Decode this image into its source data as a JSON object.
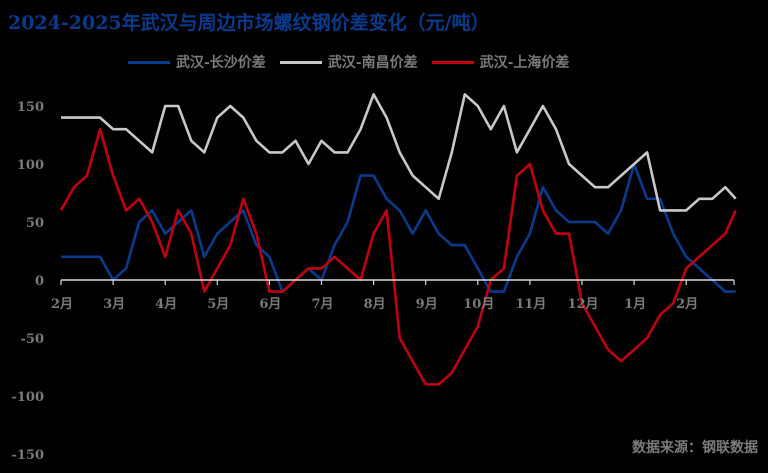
{
  "title": "2024-2025年武汉与周边市场螺纹钢价差变化（元/吨）",
  "source": "数据来源：钢联数据",
  "chart_data": {
    "type": "line",
    "title": "2024-2025年武汉与周边市场螺纹钢价差变化（元/吨）",
    "xlabel": "",
    "ylabel": "元/吨",
    "ylim": [
      -150,
      150
    ],
    "yticks": [
      150,
      100,
      50,
      0,
      -50,
      -100,
      -150
    ],
    "xticks": [
      "2月",
      "3月",
      "4月",
      "5月",
      "6月",
      "7月",
      "8月",
      "9月",
      "10月",
      "11月",
      "12月",
      "1月",
      "2月"
    ],
    "grid": false,
    "legend_position": "top",
    "x": [
      0,
      0.25,
      0.5,
      0.75,
      1,
      1.25,
      1.5,
      1.75,
      2,
      2.25,
      2.5,
      2.75,
      3,
      3.25,
      3.5,
      3.75,
      4,
      4.25,
      4.5,
      4.75,
      5,
      5.25,
      5.5,
      5.75,
      6,
      6.25,
      6.5,
      6.75,
      7,
      7.25,
      7.5,
      7.75,
      8,
      8.25,
      8.5,
      8.75,
      9,
      9.25,
      9.5,
      9.75,
      10,
      10.25,
      10.5,
      10.75,
      11,
      11.25,
      11.5,
      11.75,
      12,
      12.25,
      12.5,
      12.75,
      12.95
    ],
    "series": [
      {
        "name": "武汉-长沙价差",
        "color": "#0a3a8c",
        "values": [
          20,
          20,
          20,
          20,
          0,
          10,
          50,
          60,
          40,
          50,
          60,
          20,
          40,
          50,
          60,
          30,
          20,
          -10,
          0,
          10,
          0,
          30,
          50,
          90,
          90,
          70,
          60,
          40,
          60,
          40,
          30,
          30,
          10,
          -10,
          -10,
          20,
          40,
          80,
          60,
          50,
          50,
          50,
          40,
          60,
          100,
          70,
          70,
          40,
          20,
          10,
          0,
          -10,
          -10
        ]
      },
      {
        "name": "武汉-南昌价差",
        "color": "#c8c8c8",
        "values": [
          140,
          140,
          140,
          140,
          130,
          130,
          120,
          110,
          150,
          150,
          120,
          110,
          140,
          150,
          140,
          120,
          110,
          110,
          120,
          100,
          120,
          110,
          110,
          130,
          160,
          140,
          110,
          90,
          80,
          70,
          110,
          160,
          150,
          130,
          150,
          110,
          130,
          150,
          130,
          100,
          90,
          80,
          80,
          90,
          100,
          110,
          60,
          60,
          60,
          70,
          70,
          80,
          70
        ]
      },
      {
        "name": "武汉-上海价差",
        "color": "#c00010",
        "values": [
          60,
          80,
          90,
          130,
          90,
          60,
          70,
          50,
          20,
          60,
          40,
          -10,
          10,
          30,
          70,
          40,
          -10,
          -10,
          0,
          10,
          10,
          20,
          10,
          0,
          40,
          60,
          -50,
          -70,
          -90,
          -90,
          -80,
          -60,
          -40,
          0,
          10,
          90,
          100,
          60,
          40,
          40,
          -20,
          -40,
          -60,
          -70,
          -60,
          -50,
          -30,
          -20,
          10,
          20,
          30,
          40,
          60
        ]
      }
    ]
  },
  "legend": [
    {
      "label": "武汉-长沙价差",
      "color": "#0a3a8c"
    },
    {
      "label": "武汉-南昌价差",
      "color": "#c8c8c8"
    },
    {
      "label": "武汉-上海价差",
      "color": "#c00010"
    }
  ]
}
